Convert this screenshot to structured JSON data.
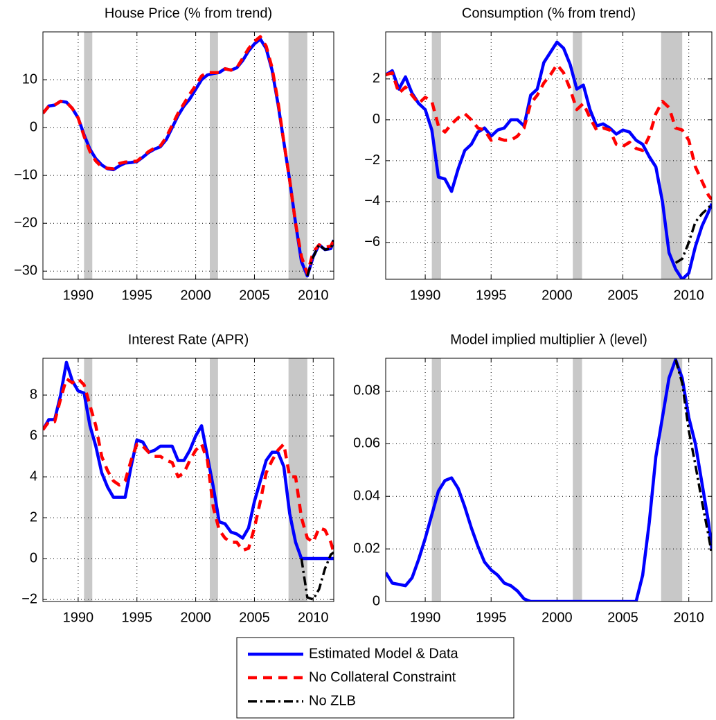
{
  "chart_data": [
    {
      "type": "line",
      "title": "House Price (% from trend)",
      "x": [
        1987,
        1987.5,
        1988,
        1988.5,
        1989,
        1989.5,
        1990,
        1990.5,
        1991,
        1991.5,
        1992,
        1992.5,
        1993,
        1993.5,
        1994,
        1994.5,
        1995,
        1995.5,
        1996,
        1996.5,
        1997,
        1997.5,
        1998,
        1998.5,
        1999,
        1999.5,
        2000,
        2000.5,
        2001,
        2001.5,
        2002,
        2002.5,
        2003,
        2003.5,
        2004,
        2004.5,
        2005,
        2005.5,
        2006,
        2006.5,
        2007,
        2007.5,
        2008,
        2008.5,
        2009,
        2009.5,
        2010,
        2010.5,
        2011,
        2011.5,
        2011.75
      ],
      "xlim": [
        1987,
        2011.75
      ],
      "xticks": [
        1990,
        1995,
        2000,
        2005,
        2010
      ],
      "ylim": [
        -31.7,
        20
      ],
      "yticks": [
        {
          "value": -30,
          "label": "−30"
        },
        {
          "value": -20,
          "label": "−20"
        },
        {
          "value": -10,
          "label": "−10"
        },
        0,
        10
      ],
      "grid": true,
      "recessions": [
        [
          1990.5,
          1991.2
        ],
        [
          2001.2,
          2001.9
        ],
        [
          2007.9,
          2009.5
        ]
      ],
      "recession_color": "#c8c8c8",
      "series": [
        {
          "name": "Estimated Model & Data",
          "color": "#0000ff",
          "line_style": "solid",
          "values": [
            3,
            4.5,
            4.7,
            5.5,
            5.3,
            4,
            2,
            -1.5,
            -4.5,
            -6.5,
            -7.8,
            -8.6,
            -8.8,
            -8,
            -7.4,
            -7.3,
            -7.1,
            -6.2,
            -5.2,
            -4.5,
            -4,
            -2.5,
            0,
            2.5,
            4.5,
            6,
            8,
            10,
            11,
            11.3,
            11.5,
            12.3,
            12,
            12.5,
            14,
            16,
            17.5,
            18.5,
            16.5,
            12,
            5,
            -3,
            -11,
            -20,
            -28,
            -31,
            -27,
            -24.5,
            -25.5,
            -25.3,
            -23.5
          ]
        },
        {
          "name": "No Collateral Constraint",
          "color": "#ff0000",
          "line_style": "dashed",
          "values": [
            3,
            4.5,
            4.7,
            5.5,
            5.3,
            4,
            2,
            -1.8,
            -5,
            -7,
            -8.2,
            -8.5,
            -8.6,
            -7.5,
            -7.2,
            -7.1,
            -7,
            -6,
            -5,
            -4.3,
            -3.8,
            -2,
            0.5,
            3,
            5,
            7,
            8.8,
            10.8,
            11.5,
            11.5,
            11.5,
            12.3,
            12,
            12.5,
            14.5,
            16.5,
            18,
            19,
            17,
            12.5,
            5.5,
            -3,
            -11,
            -20,
            -27,
            -30.5,
            -26,
            -24.5,
            -25,
            -24.8,
            -23.5
          ]
        },
        {
          "name": "No ZLB",
          "color": "#000000",
          "line_style": "dashdot",
          "values": [
            null,
            null,
            null,
            null,
            null,
            null,
            null,
            null,
            null,
            null,
            null,
            null,
            null,
            null,
            null,
            null,
            null,
            null,
            null,
            null,
            null,
            null,
            null,
            null,
            null,
            null,
            null,
            null,
            null,
            null,
            null,
            null,
            null,
            null,
            null,
            null,
            null,
            null,
            null,
            null,
            null,
            null,
            null,
            null,
            null,
            -31,
            -27,
            -24.5,
            -25.5,
            -25.3,
            -23.5
          ]
        }
      ]
    },
    {
      "type": "line",
      "title": "Consumption (% from trend)",
      "x": [
        1987,
        1987.5,
        1988,
        1988.5,
        1989,
        1989.5,
        1990,
        1990.5,
        1991,
        1991.5,
        1992,
        1992.5,
        1993,
        1993.5,
        1994,
        1994.5,
        1995,
        1995.5,
        1996,
        1996.5,
        1997,
        1997.5,
        1998,
        1998.5,
        1999,
        1999.5,
        2000,
        2000.5,
        2001,
        2001.5,
        2002,
        2002.5,
        2003,
        2003.5,
        2004,
        2004.5,
        2005,
        2005.5,
        2006,
        2006.5,
        2007,
        2007.5,
        2008,
        2008.5,
        2009,
        2009.5,
        2010,
        2010.5,
        2011,
        2011.5,
        2011.75
      ],
      "xlim": [
        1987,
        2011.75
      ],
      "xticks": [
        1990,
        1995,
        2000,
        2005,
        2010
      ],
      "ylim": [
        -7.8,
        4.3
      ],
      "yticks": [
        {
          "value": -6,
          "label": "−6"
        },
        {
          "value": -4,
          "label": "−4"
        },
        {
          "value": -2,
          "label": "−2"
        },
        0,
        2
      ],
      "grid": true,
      "recessions": [
        [
          1990.5,
          1991.2
        ],
        [
          2001.2,
          2001.9
        ],
        [
          2007.9,
          2009.5
        ]
      ],
      "recession_color": "#c8c8c8",
      "series": [
        {
          "name": "Estimated Model & Data",
          "color": "#0000ff",
          "line_style": "solid",
          "values": [
            2.2,
            2.4,
            1.5,
            2.1,
            1.3,
            0.8,
            0.5,
            -0.5,
            -2.8,
            -2.9,
            -3.5,
            -2.4,
            -1.5,
            -1.2,
            -0.6,
            -0.4,
            -0.8,
            -0.5,
            -0.4,
            0,
            0,
            -0.3,
            1.2,
            1.5,
            2.8,
            3.3,
            3.8,
            3.5,
            2.7,
            1.5,
            1.7,
            0.5,
            -0.3,
            -0.2,
            -0.4,
            -0.7,
            -0.5,
            -0.6,
            -1,
            -1.2,
            -1.8,
            -2.3,
            -4,
            -6.5,
            -7.3,
            -7.8,
            -7.5,
            -6.2,
            -5.2,
            -4.5,
            -4.1
          ]
        },
        {
          "name": "No Collateral Constraint",
          "color": "#ff0000",
          "line_style": "dashed",
          "values": [
            2.2,
            2.3,
            1.3,
            1.6,
            1.2,
            0.8,
            1.1,
            0.9,
            -0.3,
            -0.6,
            -0.2,
            0.1,
            0.3,
            0,
            -0.4,
            -0.5,
            -1,
            -0.9,
            -1,
            -1,
            -0.8,
            -0.4,
            0.8,
            1.2,
            1.8,
            2.2,
            2.7,
            2.3,
            1.5,
            0.5,
            0.8,
            0.1,
            -0.5,
            -0.4,
            -0.5,
            -1.2,
            -1.3,
            -1.1,
            -1.4,
            -1.5,
            -0.8,
            0.3,
            0.9,
            0.6,
            -0.4,
            -0.5,
            -1,
            -2.3,
            -3,
            -3.7,
            -3.9
          ]
        },
        {
          "name": "No ZLB",
          "color": "#000000",
          "line_style": "dashdot",
          "values": [
            null,
            null,
            null,
            null,
            null,
            null,
            null,
            null,
            null,
            null,
            null,
            null,
            null,
            null,
            null,
            null,
            null,
            null,
            null,
            null,
            null,
            null,
            null,
            null,
            null,
            null,
            null,
            null,
            null,
            null,
            null,
            null,
            null,
            null,
            null,
            null,
            null,
            null,
            null,
            null,
            null,
            null,
            null,
            null,
            -7,
            -6.8,
            -6,
            -5,
            -4.6,
            -4.3,
            -4.1
          ]
        }
      ]
    },
    {
      "type": "line",
      "title": "Interest Rate (APR)",
      "x": [
        1987,
        1987.5,
        1988,
        1988.5,
        1989,
        1989.5,
        1990,
        1990.5,
        1991,
        1991.5,
        1992,
        1992.5,
        1993,
        1993.5,
        1994,
        1994.5,
        1995,
        1995.5,
        1996,
        1996.5,
        1997,
        1997.5,
        1998,
        1998.5,
        1999,
        1999.5,
        2000,
        2000.5,
        2001,
        2001.5,
        2002,
        2002.5,
        2003,
        2003.5,
        2004,
        2004.5,
        2005,
        2005.5,
        2006,
        2006.5,
        2007,
        2007.5,
        2008,
        2008.5,
        2009,
        2009.5,
        2010,
        2010.5,
        2011,
        2011.5,
        2011.75
      ],
      "xlim": [
        1987,
        2011.75
      ],
      "xticks": [
        1990,
        1995,
        2000,
        2005,
        2010
      ],
      "ylim": [
        -2.1,
        9.8
      ],
      "yticks": [
        {
          "value": -2,
          "label": "−2"
        },
        0,
        2,
        4,
        6,
        8
      ],
      "grid": true,
      "recessions": [
        [
          1990.5,
          1991.2
        ],
        [
          2001.2,
          2001.9
        ],
        [
          2007.9,
          2009.5
        ]
      ],
      "recession_color": "#c8c8c8",
      "series": [
        {
          "name": "Estimated Model & Data",
          "color": "#0000ff",
          "line_style": "solid",
          "values": [
            6.3,
            6.8,
            6.8,
            8,
            9.6,
            8.7,
            8.2,
            8.1,
            6.5,
            5.5,
            4.2,
            3.5,
            3,
            3,
            3,
            4.5,
            5.8,
            5.7,
            5.2,
            5.3,
            5.5,
            5.5,
            5.5,
            4.8,
            4.8,
            5.3,
            6,
            6.5,
            5,
            3.5,
            1.8,
            1.7,
            1.3,
            1.2,
            1,
            1.5,
            2.8,
            3.8,
            4.8,
            5.2,
            5.2,
            4.5,
            2.2,
            0.8,
            0,
            0,
            0,
            0,
            0,
            0,
            0
          ]
        },
        {
          "name": "No Collateral Constraint",
          "color": "#ff0000",
          "line_style": "dashed",
          "values": [
            6.3,
            6.7,
            6.7,
            7.8,
            8.8,
            8.6,
            8.8,
            8.5,
            7.5,
            6.5,
            5,
            4.3,
            3.8,
            3.6,
            3.8,
            4.8,
            5.6,
            5.5,
            5.2,
            5,
            5,
            4.8,
            4.7,
            4,
            4.2,
            4.8,
            5.3,
            5.6,
            4.8,
            2.5,
            1.4,
            1,
            0.8,
            0.8,
            0.4,
            0.5,
            1.5,
            2.8,
            4.2,
            4.8,
            5.3,
            5.6,
            4,
            4,
            2,
            1,
            0.8,
            1.5,
            1.4,
            0.8,
            0.3
          ]
        },
        {
          "name": "No ZLB",
          "color": "#000000",
          "line_style": "dashdot",
          "values": [
            null,
            null,
            null,
            null,
            null,
            null,
            null,
            null,
            null,
            null,
            null,
            null,
            null,
            null,
            null,
            null,
            null,
            null,
            null,
            null,
            null,
            null,
            null,
            null,
            null,
            null,
            null,
            null,
            null,
            null,
            null,
            null,
            null,
            null,
            null,
            null,
            null,
            null,
            null,
            null,
            null,
            null,
            null,
            null,
            0,
            -1.9,
            -2,
            -1.5,
            -0.5,
            0.2,
            0.3
          ]
        }
      ]
    },
    {
      "type": "line",
      "title": "Model implied multiplier λ (level)",
      "x": [
        1987,
        1987.5,
        1988,
        1988.5,
        1989,
        1989.5,
        1990,
        1990.5,
        1991,
        1991.5,
        1992,
        1992.5,
        1993,
        1993.5,
        1994,
        1994.5,
        1995,
        1995.5,
        1996,
        1996.5,
        1997,
        1997.5,
        1998,
        1998.5,
        1999,
        1999.5,
        2000,
        2000.5,
        2001,
        2001.5,
        2002,
        2002.5,
        2003,
        2003.5,
        2004,
        2004.5,
        2005,
        2005.5,
        2006,
        2006.5,
        2007,
        2007.5,
        2008,
        2008.5,
        2009,
        2009.5,
        2010,
        2010.5,
        2011,
        2011.5,
        2011.75
      ],
      "xlim": [
        1987,
        2011.75
      ],
      "xticks": [
        1990,
        1995,
        2000,
        2005,
        2010
      ],
      "ylim": [
        0,
        0.0925
      ],
      "yticks": [
        0,
        0.02,
        0.04,
        0.06,
        0.08
      ],
      "grid": true,
      "recessions": [
        [
          1990.5,
          1991.2
        ],
        [
          2001.2,
          2001.9
        ],
        [
          2007.9,
          2009.5
        ]
      ],
      "recession_color": "#c8c8c8",
      "series": [
        {
          "name": "Estimated Model & Data",
          "color": "#0000ff",
          "line_style": "solid",
          "values": [
            0.011,
            0.007,
            0.0065,
            0.006,
            0.009,
            0.016,
            0.024,
            0.033,
            0.042,
            0.046,
            0.047,
            0.043,
            0.036,
            0.028,
            0.021,
            0.015,
            0.012,
            0.01,
            0.007,
            0.006,
            0.004,
            0.001,
            0,
            0,
            0,
            0,
            0,
            0,
            0,
            0,
            0,
            0,
            0,
            0,
            0,
            0,
            0,
            0,
            0,
            0.01,
            0.03,
            0.055,
            0.07,
            0.085,
            0.092,
            0.085,
            0.07,
            0.06,
            0.045,
            0.03,
            0.02
          ]
        },
        {
          "name": "No ZLB",
          "color": "#000000",
          "line_style": "dashdot",
          "values": [
            null,
            null,
            null,
            null,
            null,
            null,
            null,
            null,
            null,
            null,
            null,
            null,
            null,
            null,
            null,
            null,
            null,
            null,
            null,
            null,
            null,
            null,
            null,
            null,
            null,
            null,
            null,
            null,
            null,
            null,
            null,
            null,
            null,
            null,
            null,
            null,
            null,
            null,
            null,
            null,
            null,
            null,
            null,
            null,
            0.092,
            0.083,
            0.065,
            0.052,
            0.038,
            0.025,
            0.018
          ]
        }
      ]
    }
  ]
}
